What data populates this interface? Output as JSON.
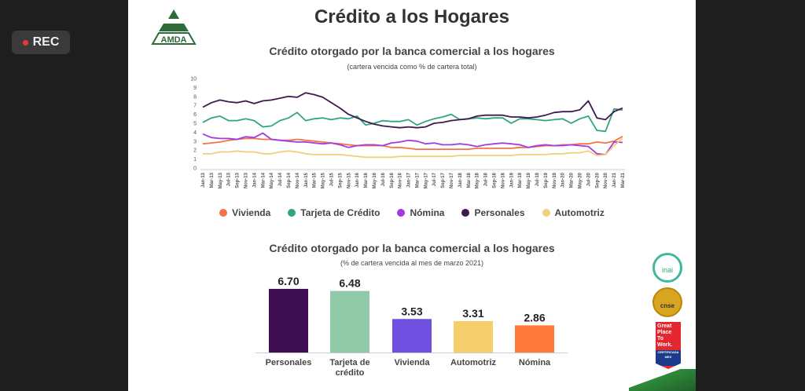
{
  "rec_label": "REC",
  "slide_title": "Crédito a los Hogares",
  "logo_text": "AMDA",
  "chart_data": [
    {
      "type": "line",
      "title": "Crédito otorgado por la banca comercial a los hogares",
      "subtitle": "(cartera vencida como % de cartera total)",
      "ylim": [
        0,
        10
      ],
      "yticks": [
        0,
        1,
        2,
        3,
        4,
        5,
        6,
        7,
        8,
        9,
        10
      ],
      "grid": false,
      "legend": "bottom",
      "x": [
        "Jan-13",
        "Mar-13",
        "May-13",
        "Jul-13",
        "Sep-13",
        "Nov-13",
        "Jan-14",
        "Mar-14",
        "May-14",
        "Jul-14",
        "Sep-14",
        "Nov-14",
        "Jan-15",
        "Mar-15",
        "May-15",
        "Jul-15",
        "Sep-15",
        "Nov-15",
        "Jan-16",
        "Mar-16",
        "May-16",
        "Jul-16",
        "Sep-16",
        "Nov-16",
        "Jan-17",
        "Mar-17",
        "May-17",
        "Jul-17",
        "Sep-17",
        "Nov-17",
        "Jan-18",
        "Mar-18",
        "May-18",
        "Jul-18",
        "Sep-18",
        "Nov-18",
        "Jan-19",
        "Mar-19",
        "May-19",
        "Jul-19",
        "Sep-19",
        "Nov-19",
        "Jan-20",
        "Mar-20",
        "May-20",
        "Jul-20",
        "Sep-20",
        "Nov-20",
        "Jan-21",
        "Mar-21"
      ],
      "series": [
        {
          "name": "Vivienda",
          "color": "#f4734a",
          "values": [
            2.7,
            2.8,
            2.9,
            3.1,
            3.2,
            3.3,
            3.3,
            3.2,
            3.2,
            3.1,
            3.1,
            3.2,
            3.1,
            3.0,
            2.9,
            2.8,
            2.7,
            2.6,
            2.5,
            2.5,
            2.5,
            2.5,
            2.3,
            2.3,
            2.2,
            2.1,
            2.1,
            2.1,
            2.1,
            2.1,
            2.1,
            2.1,
            2.2,
            2.2,
            2.2,
            2.2,
            2.2,
            2.3,
            2.3,
            2.4,
            2.5,
            2.5,
            2.6,
            2.6,
            2.7,
            2.7,
            2.9,
            2.8,
            3.0,
            3.53
          ]
        },
        {
          "name": "Tarjeta de Crédito",
          "color": "#2fa67f",
          "values": [
            5.1,
            5.6,
            5.8,
            5.3,
            5.3,
            5.5,
            5.3,
            4.6,
            4.7,
            5.3,
            5.6,
            6.2,
            5.3,
            5.5,
            5.6,
            5.4,
            5.6,
            5.5,
            5.8,
            4.8,
            5.0,
            5.3,
            5.2,
            5.2,
            5.4,
            4.8,
            5.2,
            5.5,
            5.7,
            6.0,
            5.4,
            5.5,
            5.6,
            5.5,
            5.6,
            5.6,
            5.0,
            5.5,
            5.5,
            5.4,
            5.3,
            5.4,
            5.5,
            5.0,
            5.5,
            5.8,
            4.2,
            4.1,
            6.6,
            6.48
          ]
        },
        {
          "name": "Nómina",
          "color": "#a23be0",
          "values": [
            3.8,
            3.4,
            3.3,
            3.3,
            3.2,
            3.5,
            3.4,
            3.9,
            3.2,
            3.1,
            3.0,
            2.9,
            2.9,
            2.8,
            2.7,
            2.8,
            2.6,
            2.3,
            2.5,
            2.6,
            2.6,
            2.5,
            2.8,
            2.9,
            3.1,
            3.0,
            2.7,
            2.8,
            2.6,
            2.6,
            2.7,
            2.6,
            2.4,
            2.6,
            2.7,
            2.8,
            2.7,
            2.6,
            2.3,
            2.5,
            2.6,
            2.5,
            2.5,
            2.6,
            2.5,
            2.4,
            1.6,
            1.5,
            2.9,
            2.86
          ]
        },
        {
          "name": "Personales",
          "color": "#3d1a4f",
          "values": [
            6.8,
            7.3,
            7.6,
            7.4,
            7.3,
            7.5,
            7.2,
            7.5,
            7.6,
            7.8,
            8.0,
            7.9,
            8.4,
            8.2,
            7.9,
            7.3,
            6.7,
            6.0,
            5.6,
            5.2,
            4.9,
            4.7,
            4.6,
            4.5,
            4.6,
            4.5,
            4.6,
            5.0,
            5.1,
            5.3,
            5.4,
            5.5,
            5.8,
            5.9,
            5.9,
            5.9,
            5.7,
            5.7,
            5.6,
            5.7,
            5.9,
            6.2,
            6.3,
            6.3,
            6.5,
            7.5,
            5.6,
            5.4,
            6.3,
            6.7
          ]
        },
        {
          "name": "Automotriz",
          "color": "#f0cf7d",
          "values": [
            1.6,
            1.6,
            1.8,
            1.8,
            1.9,
            1.8,
            1.8,
            1.6,
            1.6,
            1.8,
            1.9,
            1.8,
            1.6,
            1.5,
            1.5,
            1.5,
            1.5,
            1.4,
            1.3,
            1.2,
            1.2,
            1.2,
            1.2,
            1.3,
            1.3,
            1.3,
            1.3,
            1.3,
            1.3,
            1.3,
            1.4,
            1.4,
            1.4,
            1.4,
            1.4,
            1.4,
            1.4,
            1.5,
            1.5,
            1.5,
            1.5,
            1.6,
            1.6,
            1.7,
            1.7,
            1.9,
            1.4,
            1.5,
            2.5,
            3.31
          ]
        }
      ]
    },
    {
      "type": "bar",
      "title": "Crédito otorgado por la banca comercial a los hogares",
      "subtitle": "(% de cartera vencida al mes de marzo 2021)",
      "categories": [
        "Personales",
        "Tarjeta de crédito",
        "Vivienda",
        "Automotriz",
        "Nómina"
      ],
      "values": [
        6.7,
        6.48,
        3.53,
        3.31,
        2.86
      ],
      "labels": [
        "6.70",
        "6.48",
        "3.53",
        "3.31",
        "2.86"
      ],
      "colors": [
        "#3d0e52",
        "#8fc9a8",
        "#6e4fe0",
        "#f5cf6b",
        "#ff7a3c"
      ]
    }
  ],
  "badges": {
    "inai": "inai",
    "cnse": "cnse",
    "gptw": [
      "Great",
      "Place",
      "To",
      "Work.",
      "CERTIFICADA",
      "MEX"
    ]
  }
}
